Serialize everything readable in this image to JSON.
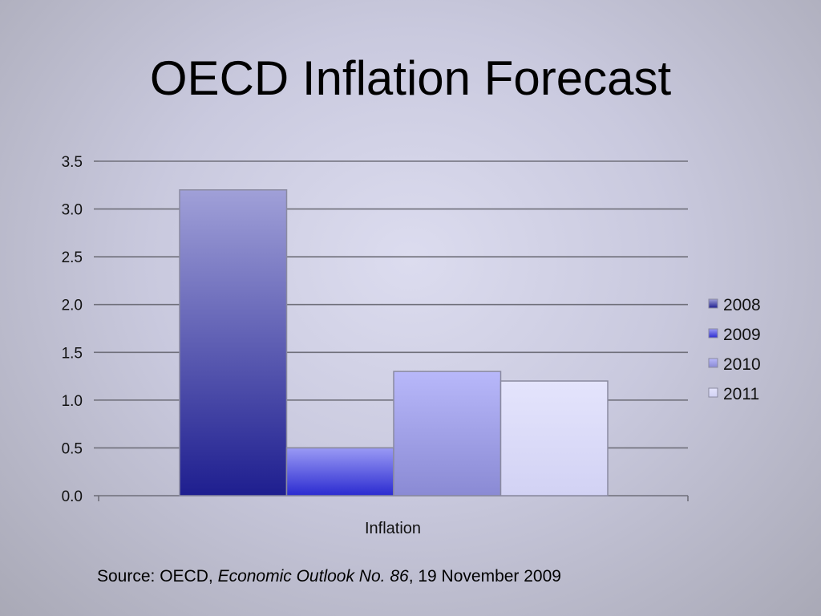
{
  "slide": {
    "title": "OECD Inflation Forecast",
    "source_prefix": "Source: OECD, ",
    "source_publication": "Economic Outlook No. 86",
    "source_suffix": ", 19 November 2009"
  },
  "colors": {
    "gridline": "#6f6f7a",
    "bar_outline": "#8a8aa0",
    "s2008_top": "#a0a0d8",
    "s2008_bottom": "#1e1e8f",
    "s2009_top": "#9a9af5",
    "s2009_bottom": "#2b2bd0",
    "s2010_top": "#b8b8fa",
    "s2010_bottom": "#8a8ad4",
    "s2011_top": "#e4e4fc",
    "s2011_bottom": "#d2d2f4"
  },
  "chart_data": {
    "type": "bar",
    "title": "OECD Inflation Forecast",
    "categories": [
      "Inflation"
    ],
    "xlabel": "Inflation",
    "ylabel": "",
    "ylim": [
      0,
      3.5
    ],
    "yticks": [
      "0.0",
      "0.5",
      "1.0",
      "1.5",
      "2.0",
      "2.5",
      "3.0",
      "3.5"
    ],
    "grid": true,
    "legend_position": "right",
    "series": [
      {
        "name": "2008",
        "values": [
          3.2
        ]
      },
      {
        "name": "2009",
        "values": [
          0.5
        ]
      },
      {
        "name": "2010",
        "values": [
          1.3
        ]
      },
      {
        "name": "2011",
        "values": [
          1.2
        ]
      }
    ]
  }
}
